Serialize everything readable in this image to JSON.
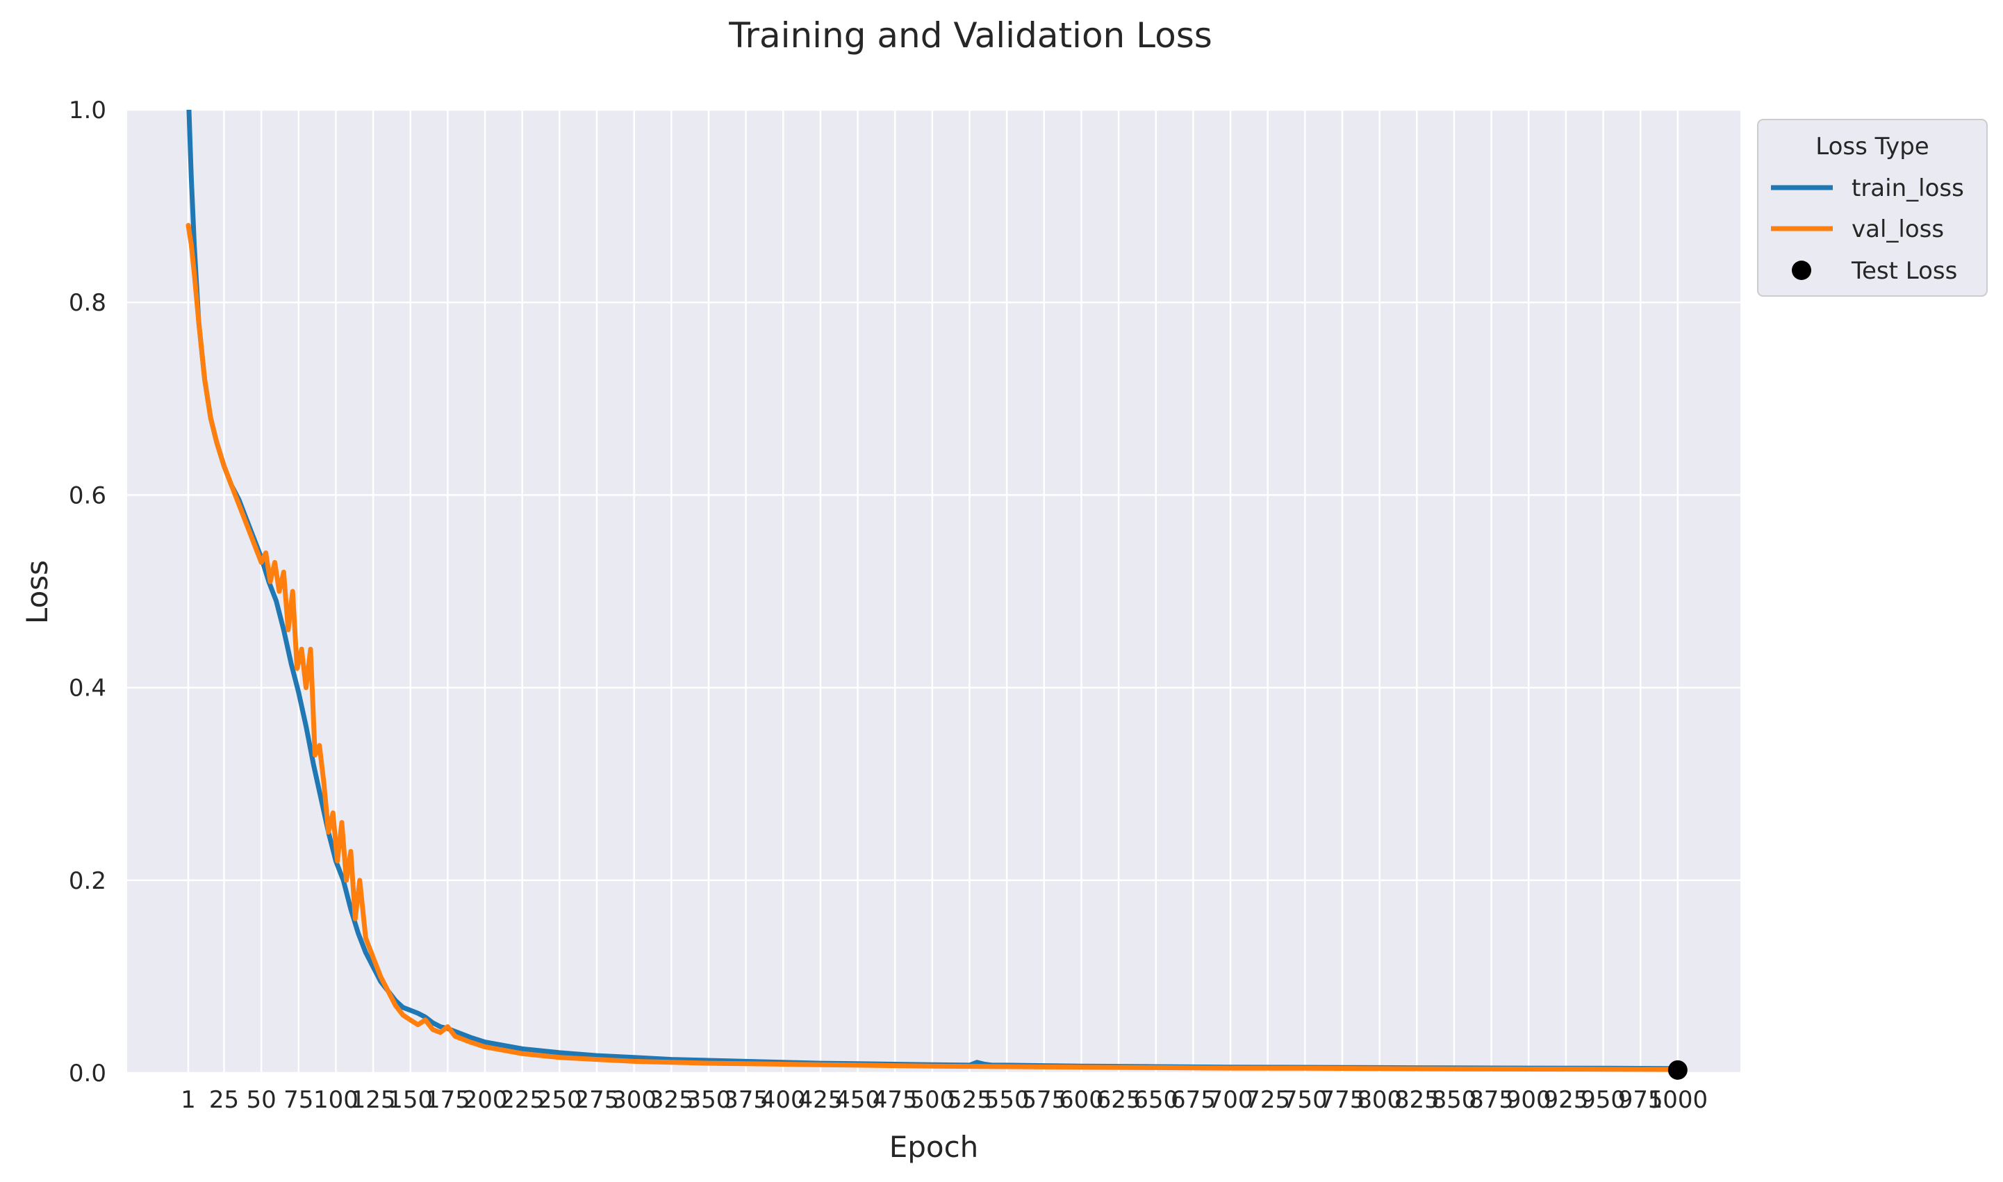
{
  "chart_data": {
    "type": "line",
    "title": "Training and Validation Loss",
    "xlabel": "Epoch",
    "ylabel": "Loss",
    "xlim": [
      -40,
      1042
    ],
    "ylim": [
      0.0,
      1.0
    ],
    "grid": true,
    "x_ticks": [
      1,
      25,
      50,
      75,
      100,
      125,
      150,
      175,
      200,
      225,
      250,
      275,
      300,
      325,
      350,
      375,
      400,
      425,
      450,
      475,
      500,
      525,
      550,
      575,
      600,
      625,
      650,
      675,
      700,
      725,
      750,
      775,
      800,
      825,
      850,
      875,
      900,
      925,
      950,
      975,
      1000
    ],
    "x_tick_labels": [
      "1",
      "25",
      "50",
      "75",
      "100",
      "125",
      "150",
      "175",
      "200",
      "225",
      "250",
      "275",
      "300",
      "325",
      "350",
      "375",
      "400",
      "425",
      "450",
      "475",
      "500",
      "525",
      "550",
      "575",
      "600",
      "625",
      "650",
      "675",
      "700",
      "725",
      "750",
      "775",
      "800",
      "825",
      "850",
      "875",
      "900",
      "925",
      "950",
      "975",
      "1000"
    ],
    "y_ticks": [
      0.0,
      0.2,
      0.4,
      0.6,
      0.8,
      1.0
    ],
    "y_tick_labels": [
      "0.0",
      "0.2",
      "0.4",
      "0.6",
      "0.8",
      "1.0"
    ],
    "legend": {
      "title": "Loss Type",
      "placement": "outside-top-right",
      "entries": [
        "train_loss",
        "val_loss",
        "Test Loss"
      ]
    },
    "series": [
      {
        "name": "train_loss",
        "color": "#1f77b4",
        "x": [
          1,
          3,
          5,
          8,
          12,
          16,
          20,
          25,
          30,
          35,
          40,
          45,
          50,
          55,
          60,
          65,
          70,
          75,
          80,
          85,
          90,
          95,
          100,
          105,
          110,
          115,
          120,
          125,
          130,
          135,
          140,
          145,
          150,
          155,
          160,
          165,
          170,
          175,
          180,
          190,
          200,
          225,
          250,
          275,
          300,
          325,
          350,
          375,
          400,
          425,
          450,
          475,
          500,
          525,
          530,
          535,
          540,
          550,
          575,
          600,
          650,
          700,
          750,
          800,
          850,
          900,
          950,
          1000
        ],
        "y": [
          1.02,
          0.93,
          0.86,
          0.78,
          0.72,
          0.68,
          0.655,
          0.63,
          0.61,
          0.595,
          0.575,
          0.555,
          0.535,
          0.51,
          0.49,
          0.46,
          0.425,
          0.395,
          0.36,
          0.32,
          0.285,
          0.25,
          0.22,
          0.2,
          0.17,
          0.145,
          0.125,
          0.11,
          0.095,
          0.085,
          0.075,
          0.068,
          0.065,
          0.062,
          0.058,
          0.052,
          0.048,
          0.046,
          0.043,
          0.037,
          0.032,
          0.025,
          0.021,
          0.018,
          0.016,
          0.014,
          0.013,
          0.012,
          0.011,
          0.01,
          0.0095,
          0.009,
          0.0085,
          0.008,
          0.011,
          0.009,
          0.008,
          0.008,
          0.0075,
          0.007,
          0.0065,
          0.006,
          0.0058,
          0.0055,
          0.0052,
          0.005,
          0.0048,
          0.0045
        ]
      },
      {
        "name": "val_loss",
        "color": "#ff7f0e",
        "x": [
          1,
          3,
          5,
          8,
          12,
          16,
          20,
          25,
          30,
          35,
          40,
          45,
          50,
          53,
          56,
          59,
          62,
          65,
          68,
          71,
          74,
          77,
          80,
          83,
          86,
          89,
          92,
          95,
          98,
          101,
          104,
          107,
          110,
          113,
          116,
          120,
          125,
          130,
          135,
          140,
          145,
          150,
          155,
          160,
          165,
          170,
          175,
          180,
          190,
          200,
          225,
          250,
          275,
          300,
          325,
          350,
          375,
          400,
          425,
          450,
          475,
          500,
          550,
          600,
          650,
          700,
          750,
          800,
          850,
          900,
          950,
          1000
        ],
        "y": [
          0.88,
          0.86,
          0.83,
          0.78,
          0.72,
          0.68,
          0.655,
          0.63,
          0.61,
          0.59,
          0.57,
          0.55,
          0.53,
          0.54,
          0.51,
          0.53,
          0.5,
          0.52,
          0.46,
          0.5,
          0.42,
          0.44,
          0.4,
          0.44,
          0.33,
          0.34,
          0.3,
          0.25,
          0.27,
          0.22,
          0.26,
          0.2,
          0.23,
          0.16,
          0.2,
          0.14,
          0.12,
          0.1,
          0.085,
          0.07,
          0.06,
          0.055,
          0.05,
          0.055,
          0.045,
          0.042,
          0.048,
          0.038,
          0.032,
          0.027,
          0.02,
          0.016,
          0.014,
          0.012,
          0.011,
          0.01,
          0.0095,
          0.009,
          0.0085,
          0.008,
          0.0075,
          0.007,
          0.0065,
          0.006,
          0.0055,
          0.005,
          0.0048,
          0.0045,
          0.0042,
          0.004,
          0.0038,
          0.0035
        ]
      }
    ],
    "points": [
      {
        "name": "Test Loss",
        "color": "#000000",
        "x": 1000,
        "y": 0.003
      }
    ]
  }
}
